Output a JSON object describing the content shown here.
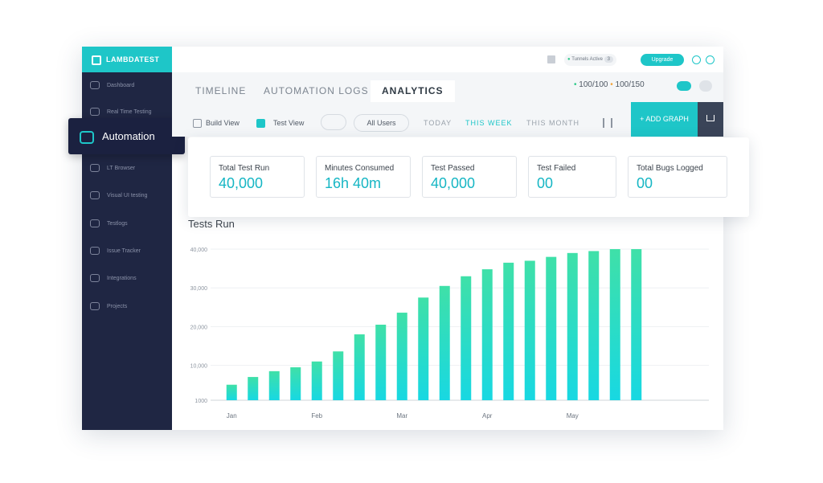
{
  "logo": "LAMBDATEST",
  "sidebar": {
    "items": [
      "Dashboard",
      "Real Time Testing",
      "Automation",
      "LT Browser",
      "Visual UI testing",
      "Testlogs",
      "Issue Tracker",
      "Integrations",
      "Projects"
    ]
  },
  "header": {
    "tunnels_label": "Tunnels Active",
    "tunnels_count": "3",
    "upgrade": "Upgrade",
    "quota": [
      "100/100",
      "100/150"
    ]
  },
  "tabs": [
    "TIMELINE",
    "AUTOMATION LOGS",
    "ANALYTICS"
  ],
  "toolbar": {
    "build_view": "Build View",
    "test_view": "Test View",
    "users": "All Users",
    "ranges": [
      "TODAY",
      "THIS WEEK",
      "THIS MONTH"
    ],
    "add_graph": "+ ADD GRAPH"
  },
  "stats": [
    {
      "label": "Total Test Run",
      "value": "40,000"
    },
    {
      "label": "Minutes Consumed",
      "value": "16h 40m"
    },
    {
      "label": "Test Passed",
      "value": "40,000"
    },
    {
      "label": "Test Failed",
      "value": "00"
    },
    {
      "label": "Total Bugs Logged",
      "value": "00"
    }
  ],
  "chart_data": {
    "type": "bar",
    "title": "Tests Run",
    "categories": [
      "Jan",
      null,
      null,
      null,
      "Feb",
      null,
      null,
      null,
      "Mar",
      null,
      null,
      null,
      "Apr",
      null,
      null,
      null,
      "May",
      null,
      null,
      null
    ],
    "values": [
      5000,
      7000,
      8500,
      9500,
      11000,
      13600,
      18000,
      20500,
      23600,
      27500,
      30500,
      33000,
      34800,
      36500,
      37000,
      38000,
      39000,
      39500,
      40000,
      40000
    ],
    "color": [
      "#3fe0a8",
      "#18d8e2"
    ],
    "ylim": [
      1000,
      40000
    ],
    "yticks": [
      1000,
      {
        "value": 10000,
        "label": "10,000"
      },
      {
        "value": 20000,
        "label": "20,000"
      },
      {
        "value": 30000,
        "label": "30,000"
      },
      {
        "value": 40000,
        "label": "40,000"
      }
    ],
    "grid": true
  }
}
